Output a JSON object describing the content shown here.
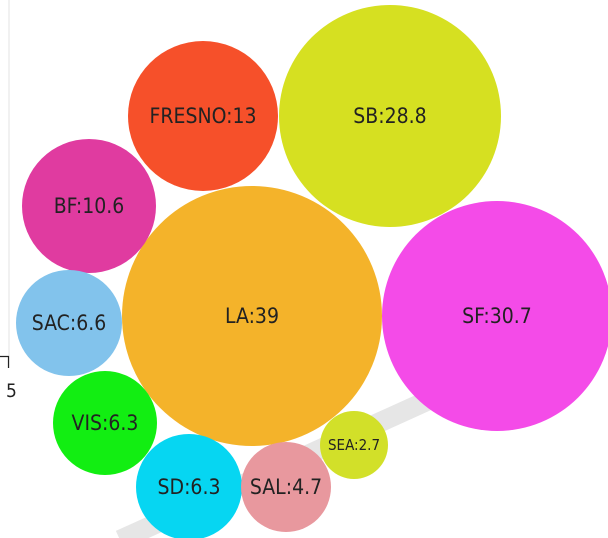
{
  "chart_data": {
    "type": "bubble",
    "points": [
      {
        "label": "LA:39",
        "name": "LA",
        "value": 39,
        "color": "#F4B32A"
      },
      {
        "label": "SF:30.7",
        "name": "SF",
        "value": 30.7,
        "color": "#F44BE8"
      },
      {
        "label": "SB:28.8",
        "name": "SB",
        "value": 28.8,
        "color": "#D6E021"
      },
      {
        "label": "FRESNO:13",
        "name": "FRESNO",
        "value": 13,
        "color": "#F6502A"
      },
      {
        "label": "BF:10.6",
        "name": "BF",
        "value": 10.6,
        "color": "#E03BA0"
      },
      {
        "label": "SAC:6.6",
        "name": "SAC",
        "value": 6.6,
        "color": "#82C3EC"
      },
      {
        "label": "VIS:6.3",
        "name": "VIS",
        "value": 6.3,
        "color": "#12EE12"
      },
      {
        "label": "SD:6.3",
        "name": "SD",
        "value": 6.3,
        "color": "#06D6F2"
      },
      {
        "label": "SAL:4.7",
        "name": "SAL",
        "value": 4.7,
        "color": "#E8989E"
      },
      {
        "label": "SEA:2.7",
        "name": "SEA",
        "value": 2.7,
        "color": "#D2E029"
      }
    ],
    "axis_tick_label": "5"
  }
}
